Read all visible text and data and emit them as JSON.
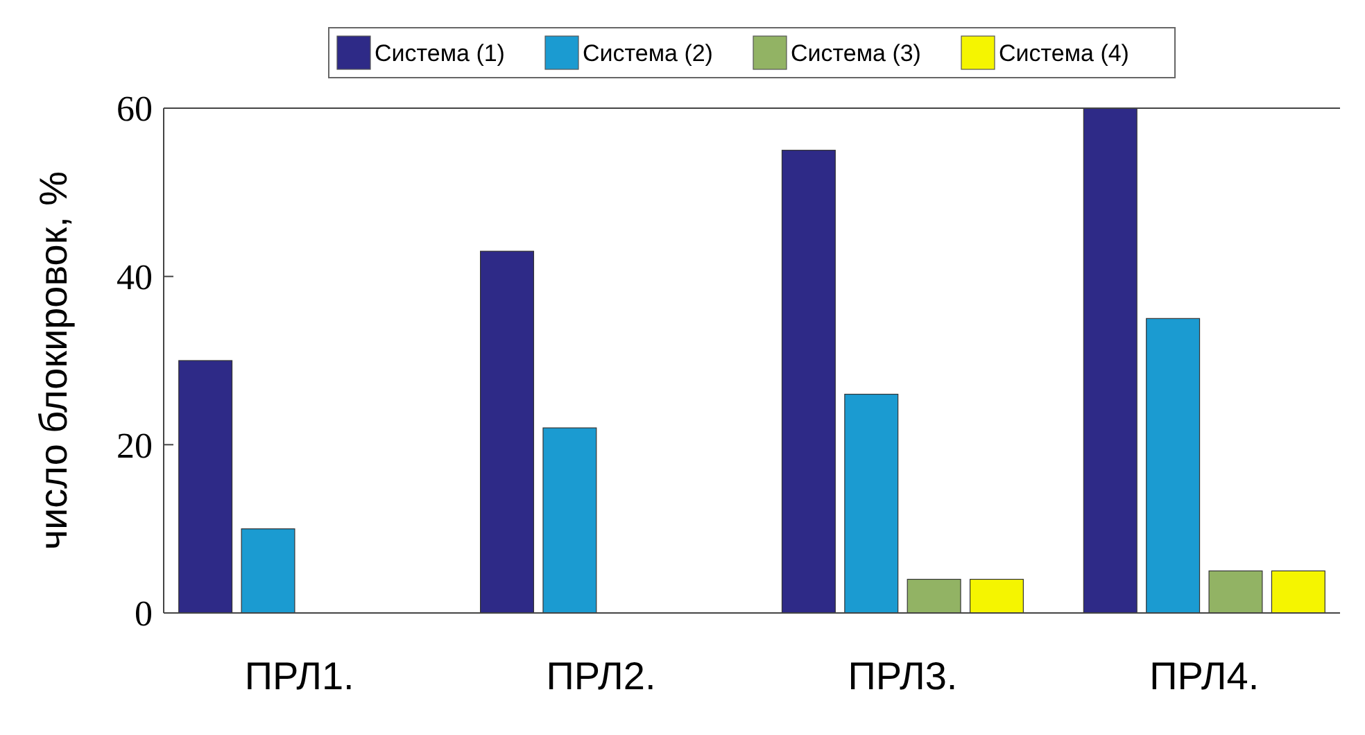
{
  "chart_data": {
    "type": "bar",
    "ylabel": "число блокировок, %",
    "categories": [
      "ПРЛ1.",
      "ПРЛ2.",
      "ПРЛ3.",
      "ПРЛ4."
    ],
    "series": [
      {
        "name": "Система (1)",
        "color": "#2e2a87",
        "values": [
          30,
          43,
          55,
          60
        ]
      },
      {
        "name": "Система (2)",
        "color": "#1b9bd1",
        "values": [
          10,
          22,
          26,
          35
        ]
      },
      {
        "name": "Система (3)",
        "color": "#92b364",
        "values": [
          0,
          0,
          4,
          5
        ]
      },
      {
        "name": "Система (4)",
        "color": "#f5f500",
        "values": [
          0,
          0,
          4,
          5
        ]
      }
    ],
    "ylim": [
      0,
      60
    ],
    "yticks": [
      0,
      20,
      40,
      60
    ],
    "grid": false,
    "legend": "top"
  }
}
